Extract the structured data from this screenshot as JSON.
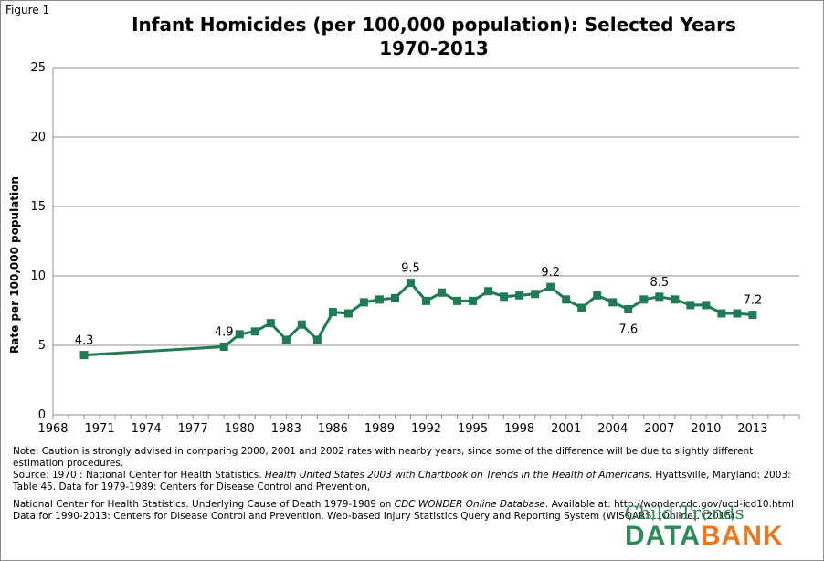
{
  "figure_label": "Figure 1",
  "title_line1": "Infant Homicides (per 100,000 population): Selected Years",
  "title_line2": "1970-2013",
  "chart_data": {
    "type": "line",
    "title": "Infant Homicides (per 100,000 population): Selected Years 1970-2013",
    "xlabel": "",
    "ylabel": "Rate per 100,000 population",
    "xlim": [
      1968,
      2016
    ],
    "ylim": [
      0,
      25
    ],
    "x_ticks": [
      1968,
      1971,
      1974,
      1977,
      1980,
      1983,
      1986,
      1989,
      1992,
      1995,
      1998,
      2001,
      2004,
      2007,
      2010,
      2013
    ],
    "y_ticks": [
      0,
      5,
      10,
      15,
      20,
      25
    ],
    "grid": "horizontal",
    "color": "#1f7a55",
    "series": [
      {
        "x": [
          1970,
          1979,
          1980,
          1981,
          1982,
          1983,
          1984,
          1985,
          1986,
          1987,
          1988,
          1989,
          1990,
          1991,
          1992,
          1993,
          1994,
          1995,
          1996,
          1997,
          1998,
          1999,
          2000,
          2001,
          2002,
          2003,
          2004,
          2005,
          2006,
          2007,
          2008,
          2009,
          2010,
          2011,
          2012,
          2013
        ],
        "y": [
          4.3,
          4.9,
          5.8,
          6.0,
          6.6,
          5.4,
          6.5,
          5.4,
          7.4,
          7.3,
          8.1,
          8.3,
          8.4,
          9.5,
          8.2,
          8.8,
          8.2,
          8.2,
          8.9,
          8.5,
          8.6,
          8.7,
          9.2,
          8.3,
          7.7,
          8.6,
          8.1,
          7.6,
          8.3,
          8.5,
          8.3,
          7.9,
          7.9,
          7.3,
          7.3,
          7.2
        ]
      }
    ],
    "data_labels": [
      {
        "x": 1970,
        "y": 4.3,
        "text": "4.3",
        "pos": "above"
      },
      {
        "x": 1979,
        "y": 4.9,
        "text": "4.9",
        "pos": "above"
      },
      {
        "x": 1991,
        "y": 9.5,
        "text": "9.5",
        "pos": "above"
      },
      {
        "x": 2000,
        "y": 9.2,
        "text": "9.2",
        "pos": "above"
      },
      {
        "x": 2005,
        "y": 7.6,
        "text": "7.6",
        "pos": "below"
      },
      {
        "x": 2007,
        "y": 8.5,
        "text": "8.5",
        "pos": "above"
      },
      {
        "x": 2013,
        "y": 7.2,
        "text": "7.2",
        "pos": "above"
      }
    ]
  },
  "notes": {
    "note": "Note: Caution is strongly advised in comparing 2000, 2001 and 2002 rates with nearby years, since some of the difference will be due to slightly different estimation procedures.",
    "source_prefix": "Source:  1970 : National Center for Health Statistics. ",
    "source_italic1": "Health United States 2003 with Chartbook on Trends in the Health of Americans",
    "source_mid": ". Hyattsville, Maryland: 2003: Table 45. Data for 1979-1989: Centers for Disease Control and Prevention,",
    "source2_prefix": "National Center for Health Statistics. Underlying Cause of Death 1979-1989 on ",
    "source2_italic": "CDC WONDER Online Database",
    "source2_rest": ". Available at: http://wonder.cdc.gov/ucd-icd10.html Data for 1990-2013: Centers for Disease Control and Prevention.  Web-based Injury Statistics Query and Reporting System (WISQARS) [Online]. (2015)"
  },
  "logo": {
    "line1": "Child Trends",
    "data_part": "DATA",
    "bank_part": "BANK"
  }
}
